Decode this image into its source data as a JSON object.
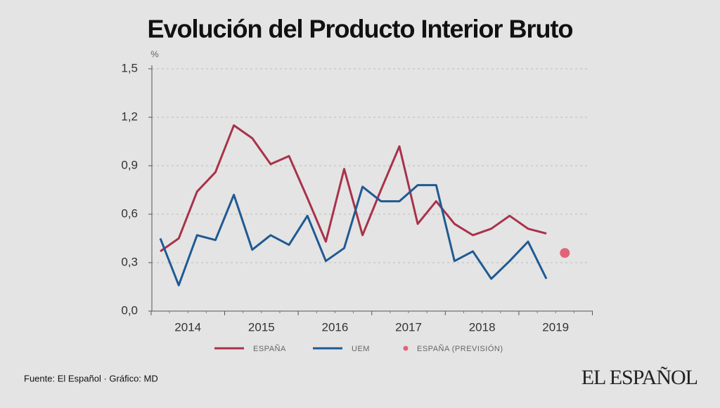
{
  "chart_data": {
    "type": "line",
    "title": "Evolución del Producto Interior Bruto",
    "y_unit": "%",
    "year_labels": [
      "2014",
      "2015",
      "2016",
      "2017",
      "2018",
      "2019"
    ],
    "ylim": [
      0,
      1.5
    ],
    "yticks": [
      {
        "value": 0,
        "label": "0,0"
      },
      {
        "value": 0.3,
        "label": "0,3"
      },
      {
        "value": 0.6,
        "label": "0,6"
      },
      {
        "value": 0.9,
        "label": "0,9"
      },
      {
        "value": 1.2,
        "label": "1,2"
      },
      {
        "value": 1.5,
        "label": "1,5"
      }
    ],
    "grid": true,
    "series": [
      {
        "name": "ESPAÑA",
        "color": "#a8324a",
        "style": "line",
        "values": [
          0.37,
          0.45,
          0.74,
          0.86,
          1.15,
          1.07,
          0.91,
          0.96,
          0.7,
          0.43,
          0.88,
          0.47,
          0.75,
          1.02,
          0.54,
          0.68,
          0.54,
          0.47,
          0.51,
          0.59,
          0.51,
          0.48,
          null
        ]
      },
      {
        "name": "UEM",
        "color": "#1f5a93",
        "style": "line",
        "values": [
          0.45,
          0.16,
          0.47,
          0.44,
          0.72,
          0.38,
          0.47,
          0.41,
          0.59,
          0.31,
          0.39,
          0.77,
          0.68,
          0.68,
          0.78,
          0.78,
          0.31,
          0.37,
          0.2,
          0.31,
          0.43,
          0.2,
          null
        ]
      },
      {
        "name": "ESPAÑA (PREVISIÓN)",
        "color": "#e06478",
        "style": "dot",
        "values": [
          null,
          null,
          null,
          null,
          null,
          null,
          null,
          null,
          null,
          null,
          null,
          null,
          null,
          null,
          null,
          null,
          null,
          null,
          null,
          null,
          null,
          null,
          0.36
        ]
      }
    ],
    "source": "Fuente: El Español · Gráfico: MD",
    "logo": "EL ESPAÑOL"
  }
}
